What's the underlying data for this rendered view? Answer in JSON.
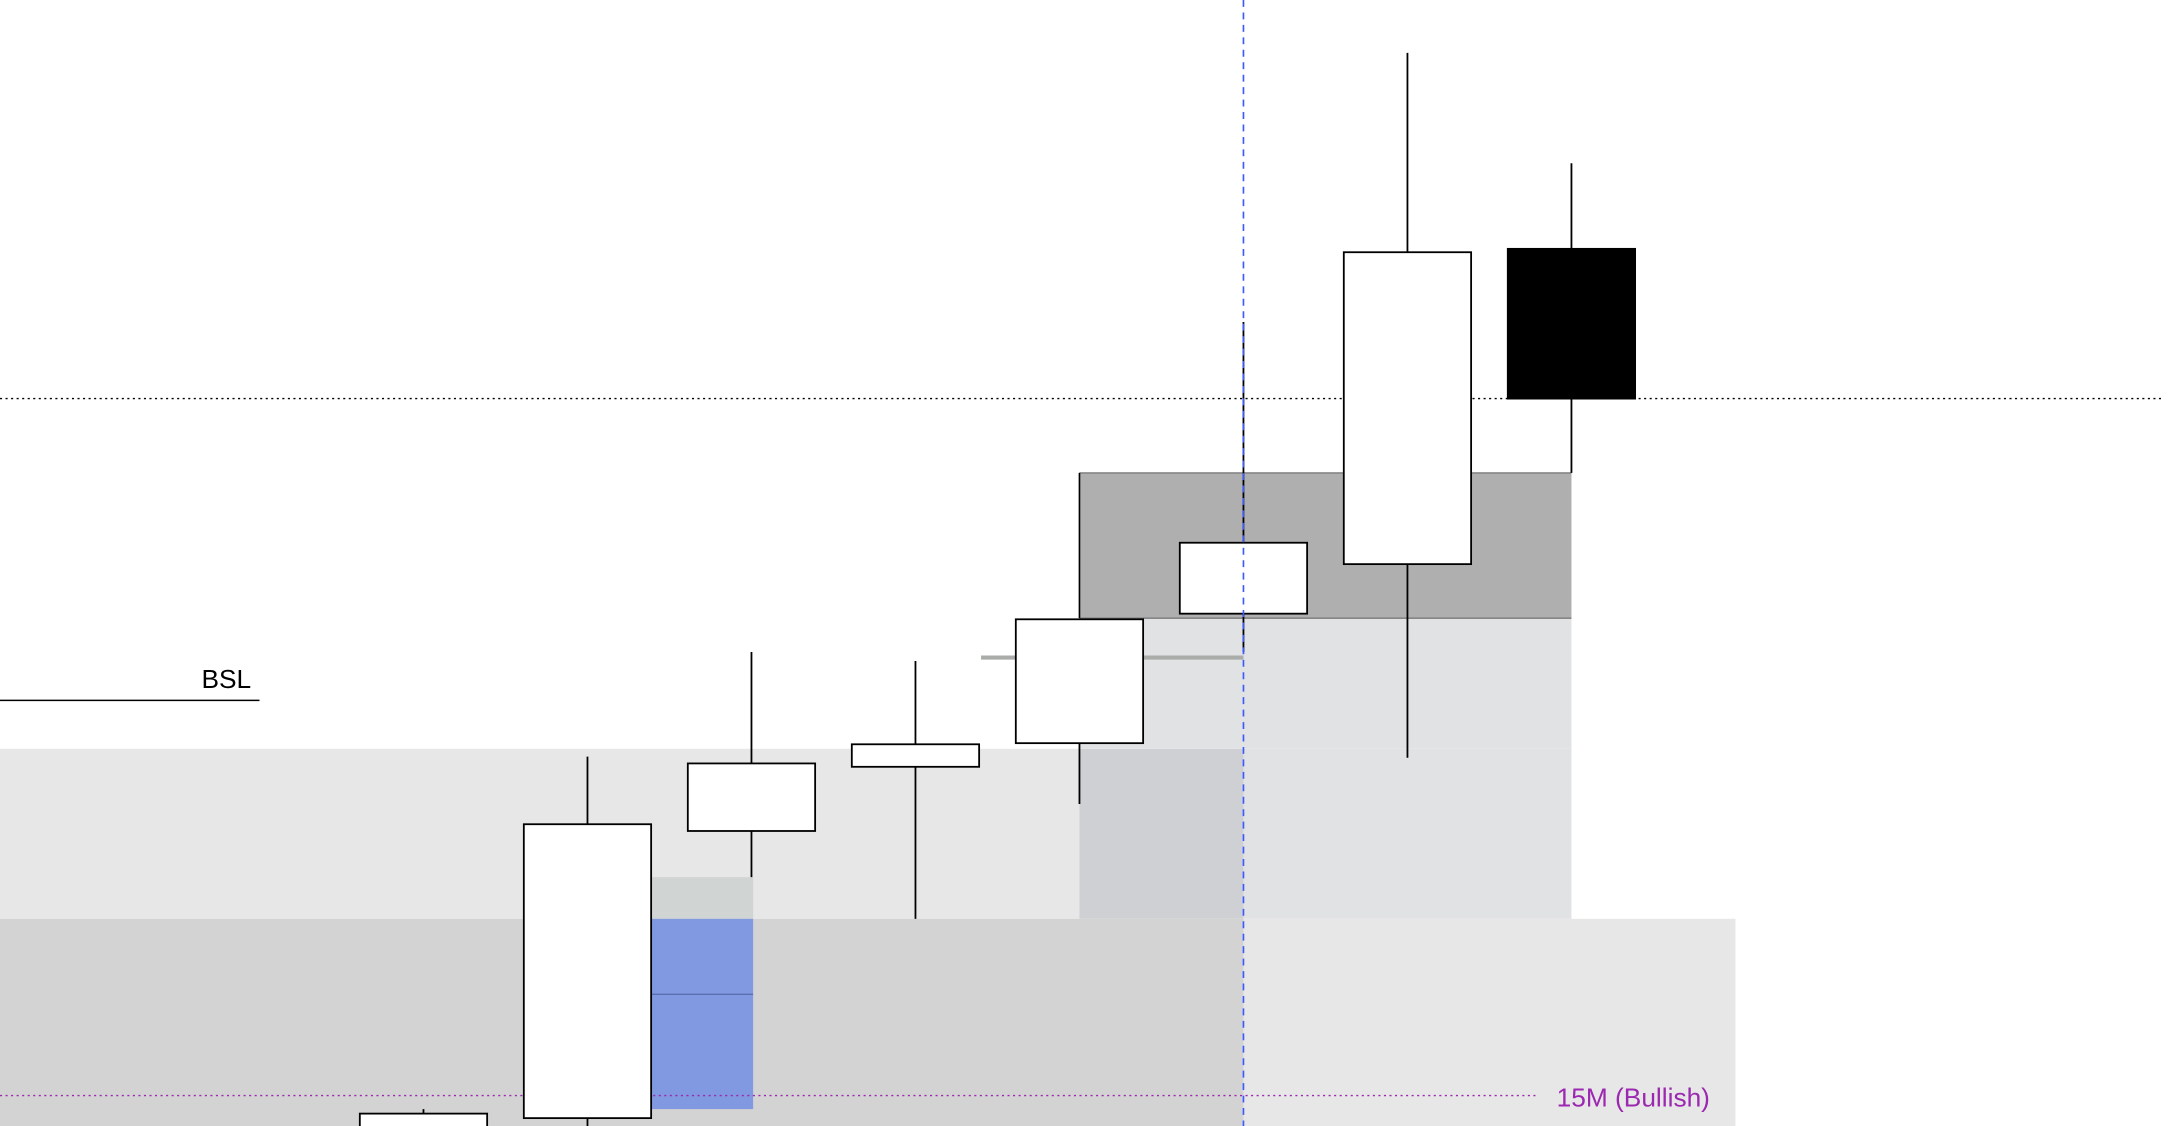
{
  "chart_data": {
    "type": "candlestick",
    "title": "",
    "xlabel": "",
    "ylabel": "",
    "ylim": [
      0,
      100
    ],
    "grid": false,
    "candles": [
      {
        "o": -1.5,
        "h": 1.5,
        "l": -3.0,
        "c": 1.1
      },
      {
        "o": 0.7,
        "h": 32.8,
        "l": -1.0,
        "c": 26.8
      },
      {
        "o": 26.2,
        "h": 42.1,
        "l": 22.1,
        "c": 32.2
      },
      {
        "o": 31.9,
        "h": 41.3,
        "l": 18.4,
        "c": 33.9
      },
      {
        "o": 34.0,
        "h": 45.0,
        "l": 28.6,
        "c": 45.0
      },
      {
        "o": 45.5,
        "h": 71.4,
        "l": 42.1,
        "c": 51.8
      },
      {
        "o": 49.9,
        "h": 95.3,
        "l": 32.7,
        "c": 77.6
      },
      {
        "o": 77.9,
        "h": 85.5,
        "l": 58.0,
        "c": 64.6
      }
    ],
    "zones": [
      {
        "from": -2.6,
        "to": 4.0,
        "low": 18.4,
        "high": 33.5,
        "color": "#e7e7e7"
      },
      {
        "from": 4.0,
        "to": 5.0,
        "low": 18.4,
        "high": 33.5,
        "color": "#cfd0d4"
      },
      {
        "from": 4.0,
        "to": 7.0,
        "low": 33.5,
        "high": 45.1,
        "color": "#e1e2e4"
      },
      {
        "from": 5.0,
        "to": 7.0,
        "low": 18.4,
        "high": 33.5,
        "color": "#e1e2e4"
      },
      {
        "from": 4.0,
        "to": 7.0,
        "low": 45.1,
        "high": 58.0,
        "color": "#afafaf",
        "border": "#7a7a7a"
      },
      {
        "from": -2.6,
        "to": 5.0,
        "low": 0,
        "high": 18.4,
        "color": "#d3d3d3"
      },
      {
        "from": 5.0,
        "to": 8.0,
        "low": 0,
        "high": 18.4,
        "color": "#e7e7e7"
      },
      {
        "from": 1.39,
        "to": 2.01,
        "low": 18.4,
        "high": 22.1,
        "color": "#d0d4d2"
      },
      {
        "from": 1.39,
        "to": 2.01,
        "low": 1.5,
        "high": 18.4,
        "color": "#8099e0",
        "midline": 11.7
      }
    ],
    "levels": [
      {
        "label": "BSL",
        "price": 37.8,
        "from": -2.6,
        "to": -1.0,
        "style": "solid",
        "color": "#000000"
      },
      {
        "label": "",
        "price": 64.6,
        "from": -2.6,
        "to": 10.6,
        "style": "dotted",
        "color": "#000000"
      },
      {
        "label": "15M (Bullish)",
        "price": 2.7,
        "from": -2.6,
        "to": 6.8,
        "style": "dotted",
        "color": "#9c27b0"
      },
      {
        "label": "",
        "price": 41.6,
        "from": 3.4,
        "to": 5.0,
        "style": "solid",
        "color": "#a9aca8"
      }
    ],
    "crosshair": {
      "index": 5,
      "color": "#3d5afe"
    },
    "colors": {
      "bull": "#ffffff",
      "bear": "#000000",
      "outline": "#000000"
    }
  }
}
